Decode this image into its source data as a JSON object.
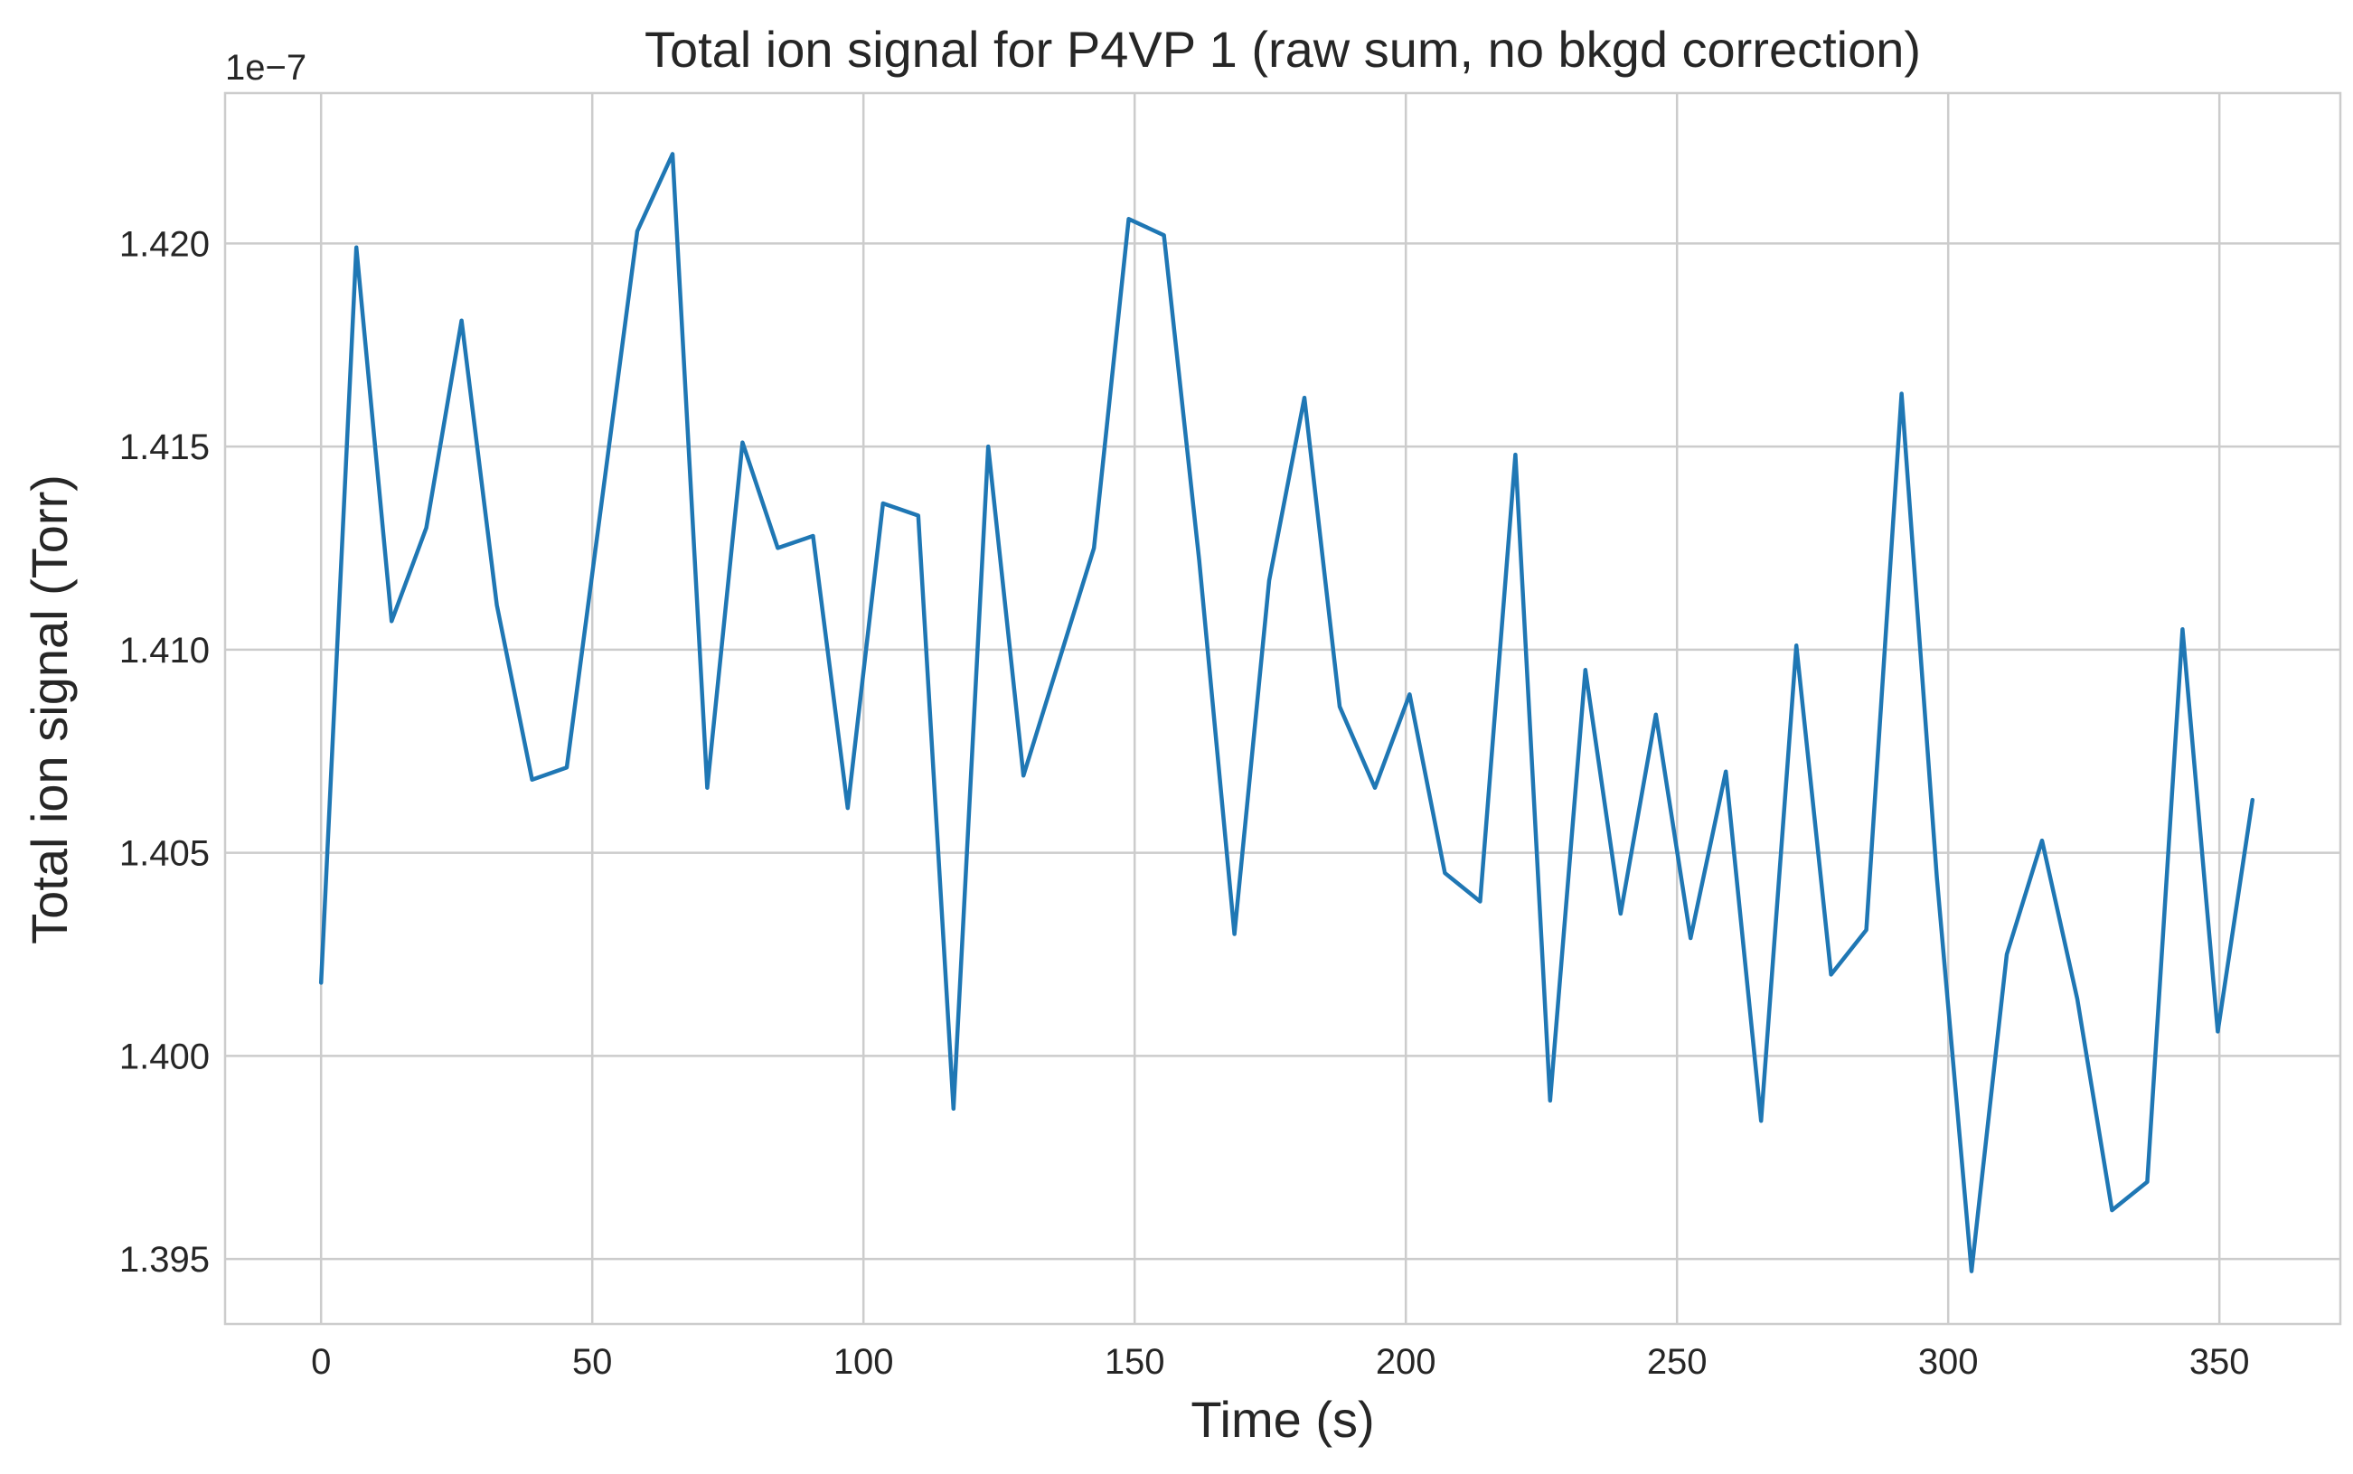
{
  "chart_data": {
    "type": "line",
    "title": "Total ion signal for P4VP 1 (raw sum, no bkgd correction)",
    "xlabel": "Time (s)",
    "ylabel": "Total ion signal (Torr)",
    "y_offset_label": "1e−7",
    "xlim": [
      -17.7,
      372.3
    ],
    "ylim": [
      1.3934,
      1.4237
    ],
    "x_ticks": [
      0,
      50,
      100,
      150,
      200,
      250,
      300,
      350
    ],
    "y_ticks": [
      1.395,
      1.4,
      1.405,
      1.41,
      1.415,
      1.42
    ],
    "y_tick_labels": [
      "1.395",
      "1.400",
      "1.405",
      "1.410",
      "1.415",
      "1.420"
    ],
    "grid": true,
    "series": [
      {
        "color": "#1f77b4",
        "x": [
          0,
          6.5,
          13,
          19.4,
          25.9,
          32.4,
          38.9,
          45.3,
          51.8,
          58.3,
          64.8,
          71.2,
          77.7,
          84.2,
          90.7,
          97.1,
          103.6,
          110.1,
          116.6,
          123,
          129.5,
          136,
          142.5,
          148.9,
          155.4,
          161.9,
          168.4,
          174.8,
          181.3,
          187.8,
          194.3,
          200.7,
          207.2,
          213.7,
          220.2,
          226.6,
          233.1,
          239.6,
          246.1,
          252.5,
          259,
          265.5,
          272,
          278.4,
          284.9,
          291.4,
          297.9,
          304.3,
          310.8,
          317.3,
          323.8,
          330.2,
          336.7,
          343.2,
          349.7,
          356.1
        ],
        "values": [
          1.4018,
          1.4199,
          1.4107,
          1.413,
          1.4181,
          1.4111,
          1.4068,
          1.4071,
          1.4137,
          1.4203,
          1.4222,
          1.4066,
          1.4151,
          1.4125,
          1.4128,
          1.4061,
          1.4136,
          1.4133,
          1.3987,
          1.415,
          1.4069,
          1.4097,
          1.4125,
          1.4206,
          1.4202,
          1.4122,
          1.403,
          1.4117,
          1.4162,
          1.4086,
          1.4066,
          1.4089,
          1.4045,
          1.4038,
          1.4148,
          1.3989,
          1.4095,
          1.4035,
          1.4084,
          1.4029,
          1.407,
          1.3984,
          1.4101,
          1.402,
          1.4031,
          1.4163,
          1.4044,
          1.3947,
          1.4025,
          1.4053,
          1.4014,
          1.3962,
          1.3969,
          1.4105,
          1.4006,
          1.4063
        ]
      }
    ]
  }
}
